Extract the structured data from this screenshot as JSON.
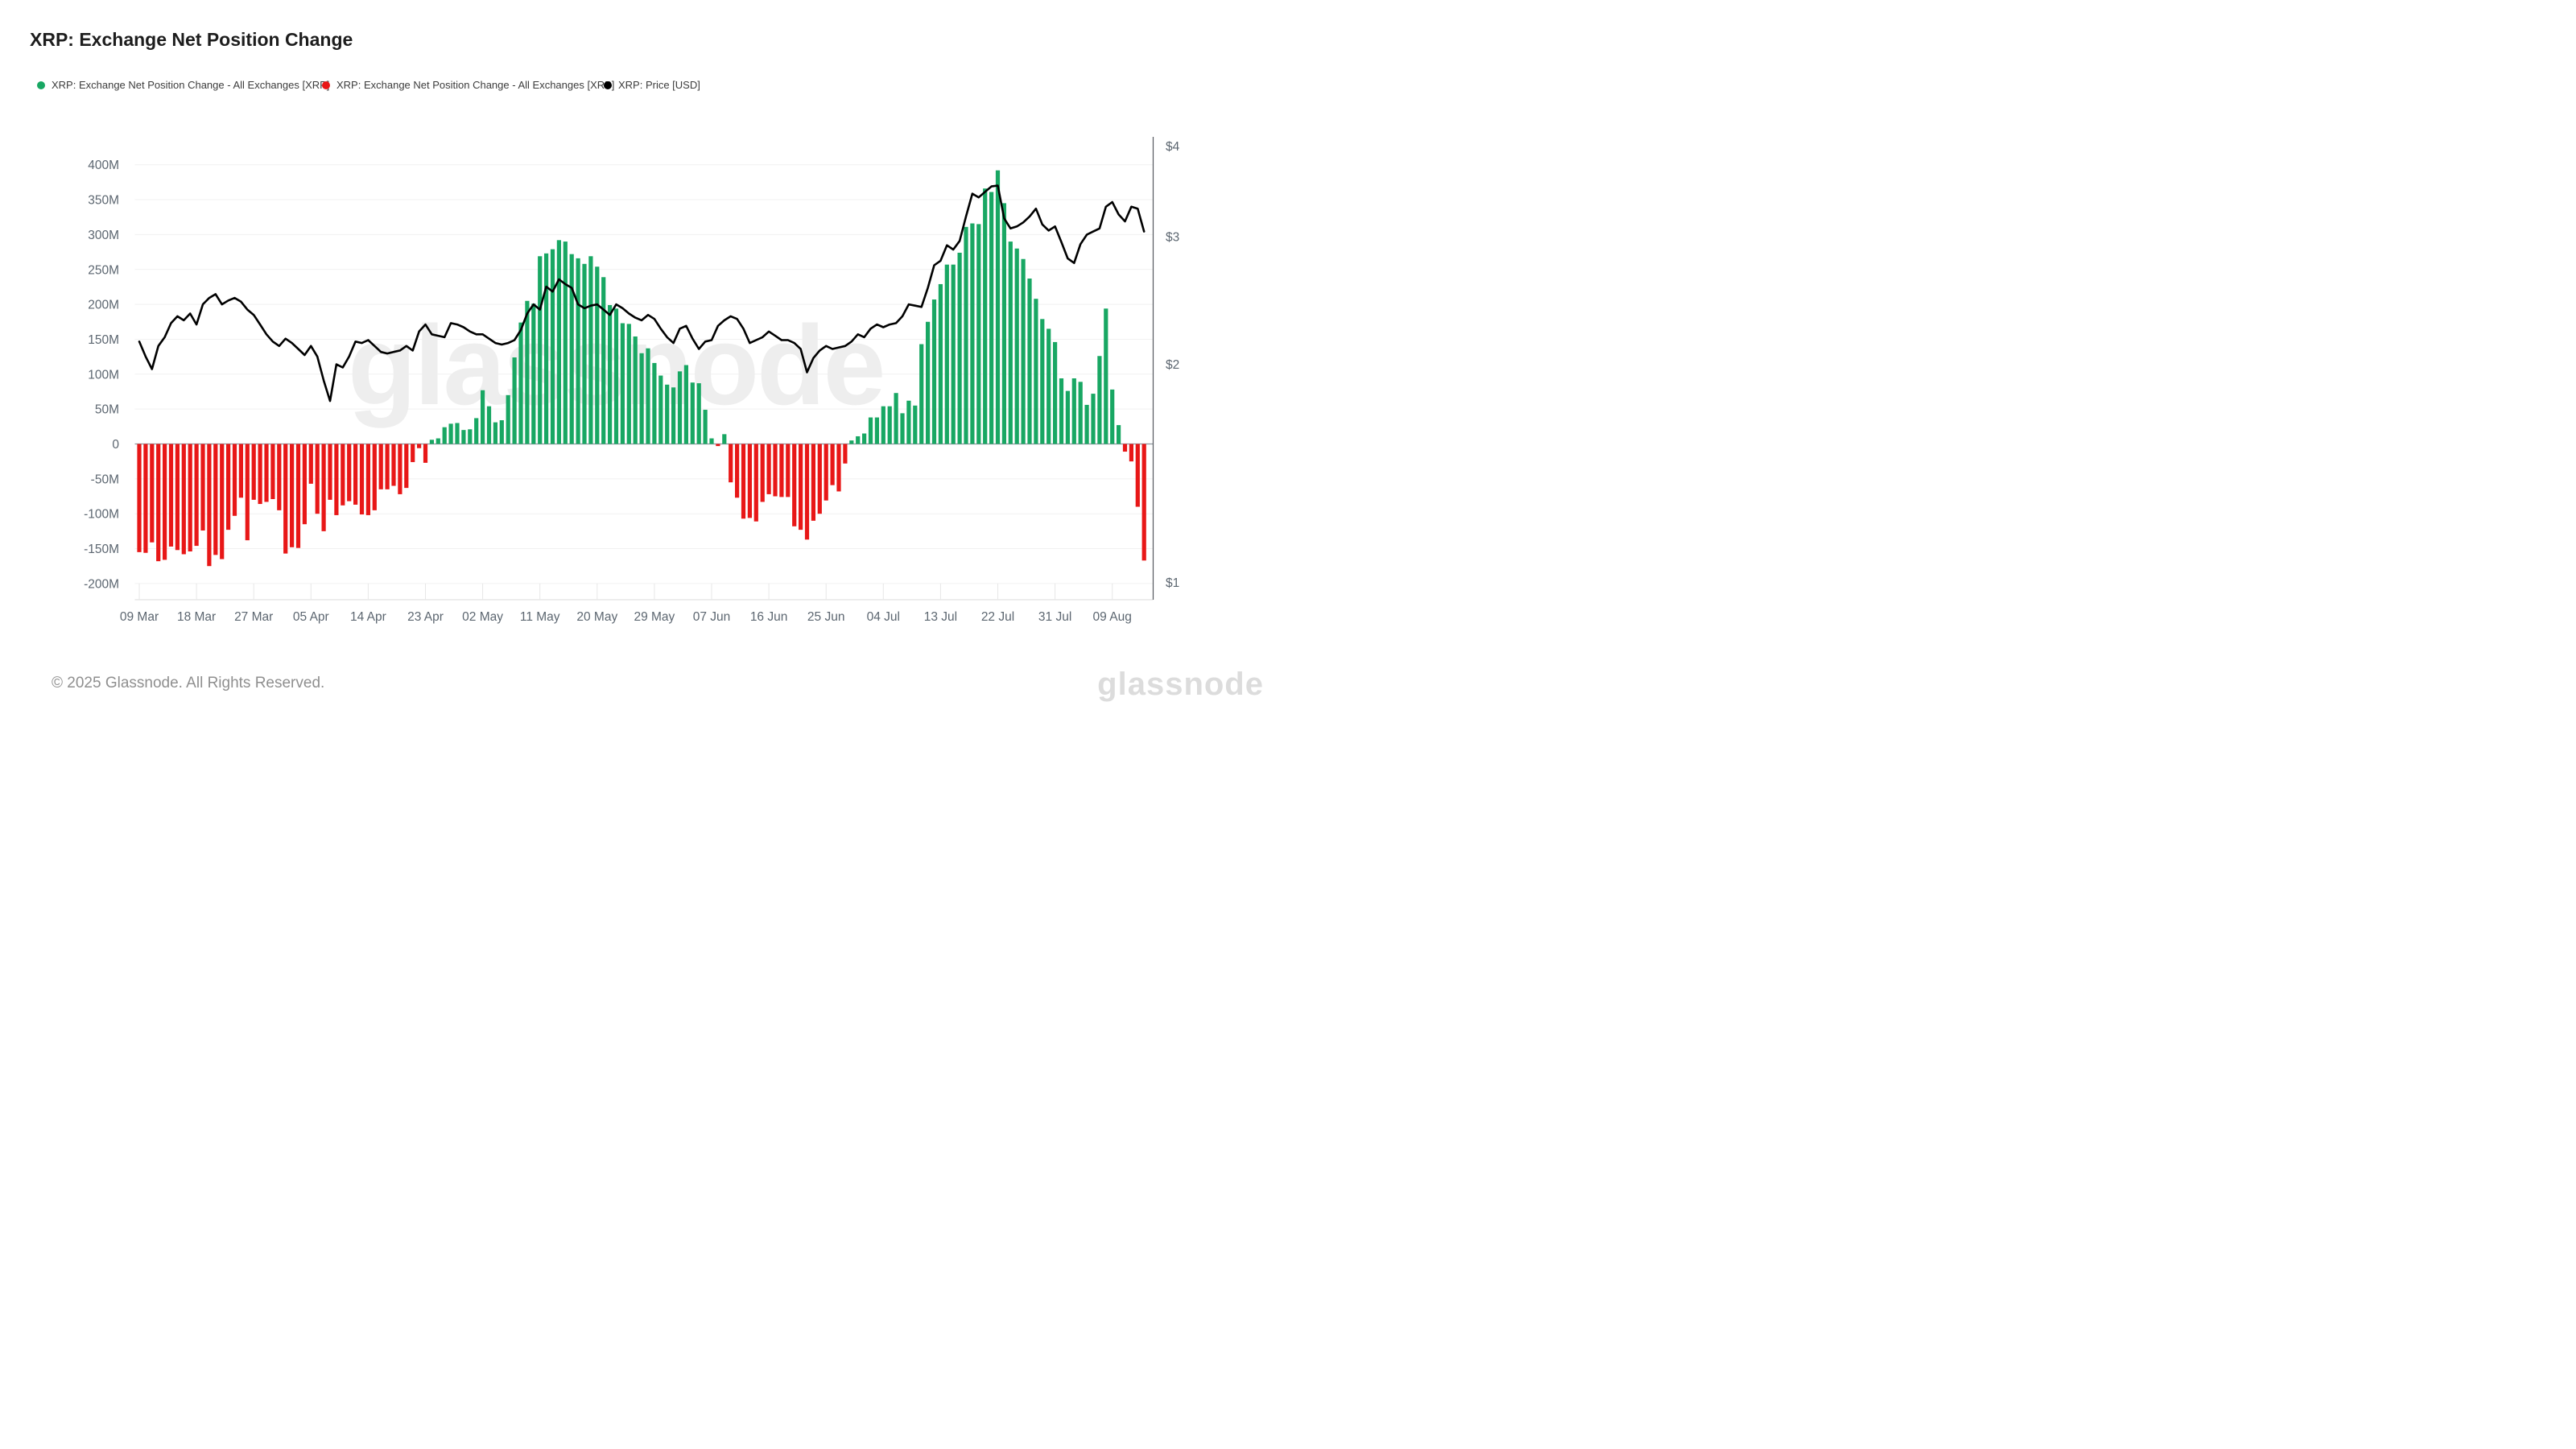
{
  "title": "XRP: Exchange Net Position Change",
  "legend": {
    "items": [
      {
        "label": "XRP: Exchange Net Position Change - All Exchanges [XRP]",
        "color": "#18a763",
        "x": 0
      },
      {
        "label": "XRP: Exchange Net Position Change - All Exchanges [XRP]",
        "color": "#e81717",
        "x": 354
      },
      {
        "label": "XRP: Price [USD]",
        "color": "#000000",
        "x": 704
      }
    ]
  },
  "footer": {
    "copyright": "© 2025 Glassnode. All Rights Reserved.",
    "brand": "glassnode"
  },
  "watermark": "glassnode",
  "colors": {
    "bar_positive": "#18a763",
    "bar_negative": "#e81717",
    "price_line": "#000000",
    "grid": "#f1f1f1",
    "zero_line": "#8e969e",
    "axis_border": "#55595e",
    "bottom_border": "#e7e7e7",
    "axis_text": "#5c6670",
    "watermark": "#eeeeee"
  },
  "chart_data": {
    "type": "combo",
    "title": "XRP: Exchange Net Position Change",
    "grid": "horizontal",
    "legend_position": "top",
    "x_start_label": "09 Mar",
    "x_end_label": "09 Aug",
    "x_ticks": [
      {
        "label": "09 Mar",
        "index": 0
      },
      {
        "label": "18 Mar",
        "index": 9
      },
      {
        "label": "27 Mar",
        "index": 18
      },
      {
        "label": "05 Apr",
        "index": 27
      },
      {
        "label": "14 Apr",
        "index": 36
      },
      {
        "label": "23 Apr",
        "index": 45
      },
      {
        "label": "02 May",
        "index": 54
      },
      {
        "label": "11 May",
        "index": 63
      },
      {
        "label": "20 May",
        "index": 72
      },
      {
        "label": "29 May",
        "index": 81
      },
      {
        "label": "07 Jun",
        "index": 90
      },
      {
        "label": "16 Jun",
        "index": 99
      },
      {
        "label": "25 Jun",
        "index": 108
      },
      {
        "label": "04 Jul",
        "index": 117
      },
      {
        "label": "13 Jul",
        "index": 126
      },
      {
        "label": "22 Jul",
        "index": 135
      },
      {
        "label": "31 Jul",
        "index": 144
      },
      {
        "label": "09 Aug",
        "index": 153
      }
    ],
    "y_left": {
      "unit": "XRP",
      "ticks": [
        {
          "label": "400M",
          "value": 400
        },
        {
          "label": "350M",
          "value": 350
        },
        {
          "label": "300M",
          "value": 300
        },
        {
          "label": "250M",
          "value": 250
        },
        {
          "label": "200M",
          "value": 200
        },
        {
          "label": "150M",
          "value": 150
        },
        {
          "label": "100M",
          "value": 100
        },
        {
          "label": "50M",
          "value": 50
        },
        {
          "label": "0",
          "value": 0
        },
        {
          "label": "-50M",
          "value": -50
        },
        {
          "label": "-100M",
          "value": -100
        },
        {
          "label": "-150M",
          "value": -150
        },
        {
          "label": "-200M",
          "value": -200
        }
      ]
    },
    "y_right": {
      "unit": "USD",
      "scale": "log",
      "ticks": [
        {
          "label": "$4",
          "value": 4
        },
        {
          "label": "$3",
          "value": 3
        },
        {
          "label": "$2",
          "value": 2
        },
        {
          "label": "$1",
          "value": 1
        }
      ]
    },
    "series": [
      {
        "name": "XRP: Exchange Net Position Change - All Exchanges [XRP]",
        "type": "bar",
        "axis": "left",
        "unit": "M XRP",
        "positive_color": "#18a763",
        "negative_color": "#e81717",
        "values": [
          -155,
          -156,
          -141,
          -168,
          -166,
          -147,
          -152,
          -158,
          -154,
          -146,
          -124,
          -175,
          -159,
          -165,
          -123,
          -103,
          -77,
          -138,
          -80,
          -86,
          -83,
          -79,
          -95,
          -157,
          -148,
          -149,
          -115,
          -57,
          -100,
          -125,
          -80,
          -102,
          -88,
          -82,
          -87,
          -101,
          -102,
          -95,
          -65,
          -65,
          -60,
          -72,
          -63,
          -26,
          -6,
          -27,
          6,
          8,
          24,
          29,
          30,
          20,
          21,
          37,
          77,
          54,
          31,
          34,
          70,
          124,
          174,
          205,
          201,
          269,
          273,
          279,
          292,
          290,
          272,
          266,
          258,
          269,
          254,
          239,
          199,
          194,
          173,
          172,
          154,
          130,
          137,
          116,
          98,
          85,
          81,
          104,
          113,
          88,
          87,
          49,
          8,
          -3,
          14,
          -55,
          -77,
          -107,
          -106,
          -111,
          -83,
          -72,
          -75,
          -76,
          -76,
          -118,
          -123,
          -137,
          -110,
          -100,
          -81,
          -59,
          -68,
          -28,
          5,
          11,
          15,
          38,
          38,
          54,
          54,
          73,
          44,
          62,
          55,
          143,
          175,
          207,
          229,
          257,
          257,
          274,
          311,
          316,
          315,
          366,
          361,
          392,
          345,
          290,
          280,
          265,
          237,
          208,
          179,
          165,
          146,
          94,
          76,
          94,
          89,
          56,
          72,
          126,
          194,
          78,
          27,
          -11,
          -25,
          -90,
          -167
        ]
      },
      {
        "name": "XRP: Price [USD]",
        "type": "line",
        "axis": "right",
        "unit": "USD",
        "color": "#000000",
        "values": [
          2.15,
          2.05,
          1.97,
          2.12,
          2.18,
          2.28,
          2.33,
          2.3,
          2.35,
          2.27,
          2.42,
          2.47,
          2.5,
          2.42,
          2.45,
          2.47,
          2.44,
          2.38,
          2.34,
          2.27,
          2.2,
          2.15,
          2.12,
          2.17,
          2.14,
          2.1,
          2.06,
          2.12,
          2.05,
          1.9,
          1.78,
          2.0,
          1.98,
          2.05,
          2.15,
          2.14,
          2.16,
          2.12,
          2.08,
          2.07,
          2.08,
          2.09,
          2.12,
          2.09,
          2.22,
          2.27,
          2.2,
          2.19,
          2.18,
          2.28,
          2.27,
          2.25,
          2.22,
          2.2,
          2.2,
          2.17,
          2.14,
          2.13,
          2.14,
          2.16,
          2.23,
          2.35,
          2.42,
          2.38,
          2.56,
          2.52,
          2.62,
          2.58,
          2.55,
          2.42,
          2.39,
          2.41,
          2.42,
          2.38,
          2.34,
          2.42,
          2.39,
          2.35,
          2.32,
          2.3,
          2.34,
          2.31,
          2.24,
          2.18,
          2.14,
          2.24,
          2.26,
          2.17,
          2.1,
          2.15,
          2.16,
          2.26,
          2.3,
          2.33,
          2.31,
          2.24,
          2.14,
          2.16,
          2.18,
          2.22,
          2.19,
          2.16,
          2.16,
          2.14,
          2.1,
          1.95,
          2.04,
          2.09,
          2.12,
          2.1,
          2.11,
          2.12,
          2.15,
          2.2,
          2.18,
          2.24,
          2.27,
          2.25,
          2.27,
          2.28,
          2.33,
          2.42,
          2.41,
          2.4,
          2.55,
          2.74,
          2.78,
          2.92,
          2.88,
          2.96,
          3.2,
          3.44,
          3.4,
          3.46,
          3.52,
          3.53,
          3.18,
          3.08,
          3.1,
          3.14,
          3.2,
          3.28,
          3.12,
          3.06,
          3.1,
          2.95,
          2.8,
          2.76,
          2.93,
          3.02,
          3.05,
          3.08,
          3.3,
          3.35,
          3.22,
          3.15,
          3.3,
          3.28,
          3.05
        ]
      }
    ]
  }
}
